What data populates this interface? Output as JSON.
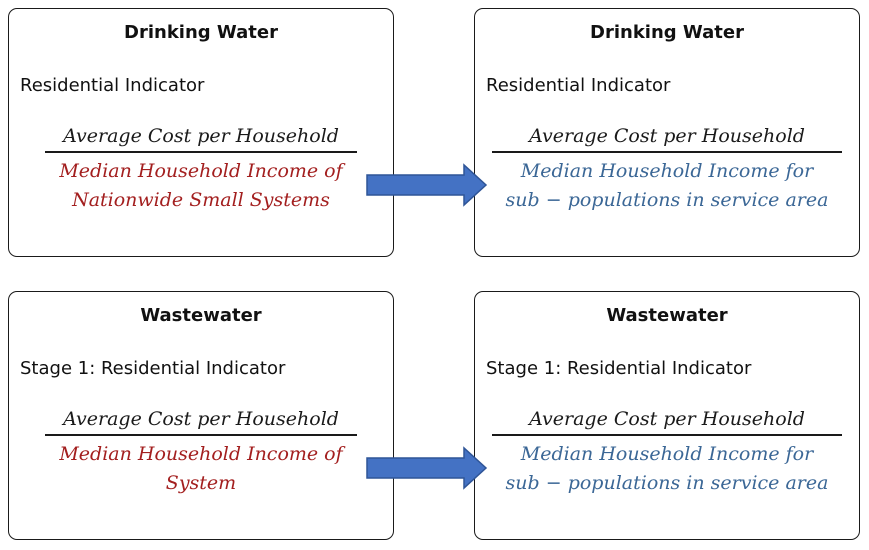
{
  "colors": {
    "red_text": "#a31f1f",
    "blue_text": "#3b6796",
    "arrow_fill": "#4472c4",
    "arrow_stroke": "#2f5597"
  },
  "boxes": {
    "dw_left": {
      "title": "Drinking Water",
      "subtitle": "Residential Indicator",
      "numerator": "Average Cost per Household",
      "denominator_line1": "Median Household Income of",
      "denominator_line2": "Nationwide Small Systems"
    },
    "dw_right": {
      "title": "Drinking Water",
      "subtitle": "Residential Indicator",
      "numerator": "Average Cost per Household",
      "denominator_line1": "Median Household Income for",
      "denominator_line2": "sub − populations in service area"
    },
    "ww_left": {
      "title": "Wastewater",
      "subtitle": "Stage 1: Residential Indicator",
      "numerator": "Average Cost per Household",
      "denominator_line1": "Median Household Income of",
      "denominator_line2": "System"
    },
    "ww_right": {
      "title": "Wastewater",
      "subtitle": "Stage 1: Residential Indicator",
      "numerator": "Average Cost per Household",
      "denominator_line1": "Median Household Income for",
      "denominator_line2": "sub − populations in service area"
    }
  }
}
